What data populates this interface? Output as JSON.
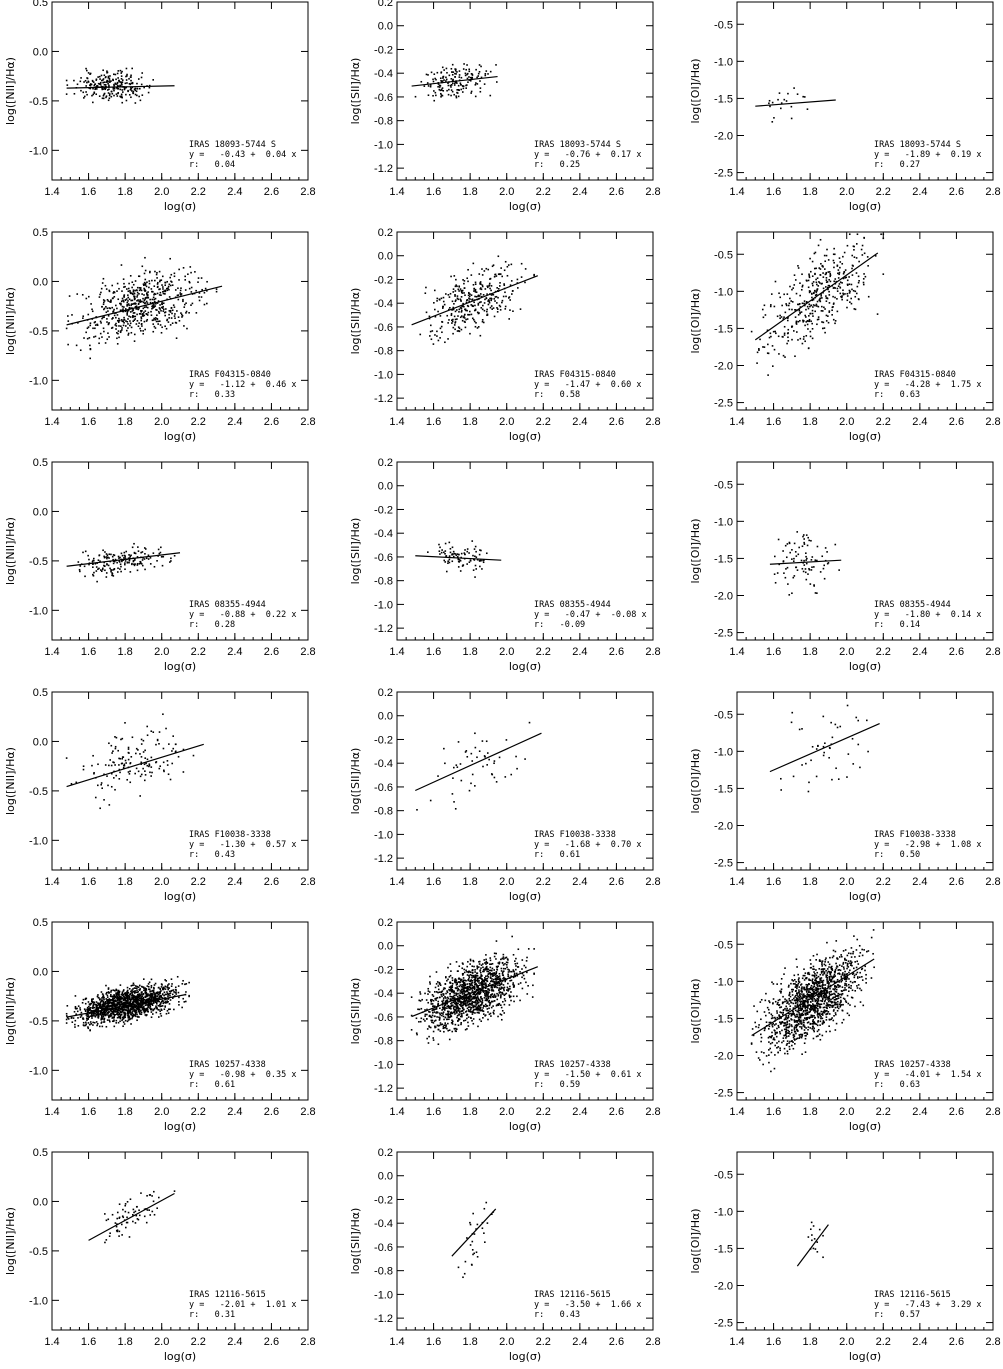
{
  "chart_data": [
    {
      "type": "scatter",
      "object": "IRAS 18093-5744 S",
      "xlabel": "log(σ)",
      "ylabel": "log([NII]/Hα)",
      "xlim": [
        1.4,
        2.8
      ],
      "ylim": [
        -1.3,
        0.5
      ],
      "xticks": [
        "1.4",
        "1.6",
        "1.8",
        "2.0",
        "2.2",
        "2.4",
        "2.6",
        "2.8"
      ],
      "yticks": [
        "0.5",
        "0.0",
        "-0.5",
        "-1.0"
      ],
      "fit_label": "y =   -0.43 +  0.04 x",
      "r_label": "r:   0.04",
      "intercept": -0.43,
      "slope": 0.04,
      "r": 0.04,
      "fit_x": [
        1.48,
        2.07
      ],
      "cloud": {
        "x": [
          1.48,
          1.98
        ],
        "center_x": 1.7,
        "y_center": -0.35,
        "y_spread": 0.07,
        "n": 250
      }
    },
    {
      "type": "scatter",
      "object": "IRAS 18093-5744 S",
      "xlabel": "log(σ)",
      "ylabel": "log([SII]/Hα)",
      "xlim": [
        1.4,
        2.8
      ],
      "ylim": [
        -1.3,
        0.2
      ],
      "xticks": [
        "1.4",
        "1.6",
        "1.8",
        "2.0",
        "2.2",
        "2.4",
        "2.6",
        "2.8"
      ],
      "yticks": [
        "0.2",
        "0.0",
        "-0.2",
        "-0.4",
        "-0.6",
        "-0.8",
        "-1.0",
        "-1.2"
      ],
      "fit_label": "y =   -0.76 +  0.17 x",
      "r_label": "r:   0.25",
      "intercept": -0.76,
      "slope": 0.17,
      "r": 0.25,
      "fit_x": [
        1.48,
        1.95
      ],
      "cloud": {
        "x": [
          1.48,
          1.95
        ],
        "center_x": 1.65,
        "y_center": -0.49,
        "y_spread": 0.07,
        "n": 170
      }
    },
    {
      "type": "scatter",
      "object": "IRAS 18093-5744 S",
      "xlabel": "log(σ)",
      "ylabel": "log([OI]/Hα)",
      "xlim": [
        1.4,
        2.8
      ],
      "ylim": [
        -2.6,
        -0.2
      ],
      "xticks": [
        "1.4",
        "1.6",
        "1.8",
        "2.0",
        "2.2",
        "2.4",
        "2.6",
        "2.8"
      ],
      "yticks": [
        "-0.5",
        "-1.0",
        "-1.5",
        "-2.0",
        "-2.5"
      ],
      "fit_label": "y =   -1.89 +  0.19 x",
      "r_label": "r:   0.27",
      "intercept": -1.89,
      "slope": 0.19,
      "r": 0.27,
      "fit_x": [
        1.5,
        1.94
      ],
      "cloud": {
        "x": [
          1.5,
          1.8
        ],
        "center_x": 1.65,
        "y_center": -1.57,
        "y_spread": 0.1,
        "n": 20
      }
    },
    {
      "type": "scatter",
      "object": "IRAS F04315-0840",
      "xlabel": "log(σ)",
      "ylabel": "log([NII]/Hα)",
      "xlim": [
        1.4,
        2.8
      ],
      "ylim": [
        -1.3,
        0.5
      ],
      "xticks": [
        "1.4",
        "1.6",
        "1.8",
        "2.0",
        "2.2",
        "2.4",
        "2.6",
        "2.8"
      ],
      "yticks": [
        "0.5",
        "0.0",
        "-0.5",
        "-1.0"
      ],
      "fit_label": "y =   -1.12 +  0.46 x",
      "r_label": "r:   0.33",
      "intercept": -1.12,
      "slope": 0.46,
      "r": 0.33,
      "fit_x": [
        1.48,
        2.33
      ],
      "cloud": {
        "x": [
          1.48,
          2.3
        ],
        "center_x": 1.8,
        "y_center": -0.28,
        "y_spread": 0.16,
        "n": 600
      }
    },
    {
      "type": "scatter",
      "object": "IRAS F04315-0840",
      "xlabel": "log(σ)",
      "ylabel": "log([SII]/Hα)",
      "xlim": [
        1.4,
        2.8
      ],
      "ylim": [
        -1.3,
        0.2
      ],
      "xticks": [
        "1.4",
        "1.6",
        "1.8",
        "2.0",
        "2.2",
        "2.4",
        "2.6",
        "2.8"
      ],
      "yticks": [
        "0.2",
        "0.0",
        "-0.2",
        "-0.4",
        "-0.6",
        "-0.8",
        "-1.0",
        "-1.2"
      ],
      "fit_label": "y =   -1.47 +  0.60 x",
      "r_label": "r:   0.58",
      "intercept": -1.47,
      "slope": 0.6,
      "r": 0.58,
      "fit_x": [
        1.48,
        2.17
      ],
      "cloud": {
        "x": [
          1.48,
          2.15
        ],
        "center_x": 1.8,
        "y_center": -0.38,
        "y_spread": 0.13,
        "n": 350
      }
    },
    {
      "type": "scatter",
      "object": "IRAS F04315-0840",
      "xlabel": "log(σ)",
      "ylabel": "log([OI]/Hα)",
      "xlim": [
        1.4,
        2.8
      ],
      "ylim": [
        -2.6,
        -0.2
      ],
      "xticks": [
        "1.4",
        "1.6",
        "1.8",
        "2.0",
        "2.2",
        "2.4",
        "2.6",
        "2.8"
      ],
      "yticks": [
        "-0.5",
        "-1.0",
        "-1.5",
        "-2.0",
        "-2.5"
      ],
      "fit_label": "y =   -4.28 +  1.75 x",
      "r_label": "r:   0.63",
      "intercept": -4.28,
      "slope": 1.75,
      "r": 0.63,
      "fit_x": [
        1.5,
        2.17
      ],
      "cloud": {
        "x": [
          1.48,
          2.2
        ],
        "center_x": 1.82,
        "y_center": -1.1,
        "y_spread": 0.27,
        "n": 420
      }
    },
    {
      "type": "scatter",
      "object": "IRAS 08355-4944",
      "xlabel": "log(σ)",
      "ylabel": "log([NII]/Hα)",
      "xlim": [
        1.4,
        2.8
      ],
      "ylim": [
        -1.3,
        0.5
      ],
      "xticks": [
        "1.4",
        "1.6",
        "1.8",
        "2.0",
        "2.2",
        "2.4",
        "2.6",
        "2.8"
      ],
      "yticks": [
        "0.5",
        "0.0",
        "-0.5",
        "-1.0"
      ],
      "fit_label": "y =   -0.88 +  0.22 x",
      "r_label": "r:   0.28",
      "intercept": -0.88,
      "slope": 0.22,
      "r": 0.28,
      "fit_x": [
        1.48,
        2.1
      ],
      "cloud": {
        "x": [
          1.48,
          2.08
        ],
        "center_x": 1.78,
        "y_center": -0.5,
        "y_spread": 0.07,
        "n": 180
      }
    },
    {
      "type": "scatter",
      "object": "IRAS 08355-4944",
      "xlabel": "log(σ)",
      "ylabel": "log([SII]/Hα)",
      "xlim": [
        1.4,
        2.8
      ],
      "ylim": [
        -1.3,
        0.2
      ],
      "xticks": [
        "1.4",
        "1.6",
        "1.8",
        "2.0",
        "2.2",
        "2.4",
        "2.6",
        "2.8"
      ],
      "yticks": [
        "0.2",
        "0.0",
        "-0.2",
        "-0.4",
        "-0.6",
        "-0.8",
        "-1.0",
        "-1.2"
      ],
      "fit_label": "y =   -0.47 +  -0.08 x",
      "r_label": "r:   -0.09",
      "intercept": -0.47,
      "slope": -0.08,
      "r": -0.09,
      "fit_x": [
        1.5,
        1.97
      ],
      "cloud": {
        "x": [
          1.55,
          1.97
        ],
        "center_x": 1.78,
        "y_center": -0.6,
        "y_spread": 0.06,
        "n": 90
      }
    },
    {
      "type": "scatter",
      "object": "IRAS 08355-4944",
      "xlabel": "log(σ)",
      "ylabel": "log([OI]/Hα)",
      "xlim": [
        1.4,
        2.8
      ],
      "ylim": [
        -2.6,
        -0.2
      ],
      "xticks": [
        "1.4",
        "1.6",
        "1.8",
        "2.0",
        "2.2",
        "2.4",
        "2.6",
        "2.8"
      ],
      "yticks": [
        "-0.5",
        "-1.0",
        "-1.5",
        "-2.0",
        "-2.5"
      ],
      "fit_label": "y =   -1.80 +  0.14 x",
      "r_label": "r:   0.14",
      "intercept": -1.8,
      "slope": 0.14,
      "r": 0.14,
      "fit_x": [
        1.58,
        1.97
      ],
      "cloud": {
        "x": [
          1.58,
          1.97
        ],
        "center_x": 1.8,
        "y_center": -1.5,
        "y_spread": 0.2,
        "n": 90
      }
    },
    {
      "type": "scatter",
      "object": "IRAS F10038-3338",
      "xlabel": "log(σ)",
      "ylabel": "log([NII]/Hα)",
      "xlim": [
        1.4,
        2.8
      ],
      "ylim": [
        -1.3,
        0.5
      ],
      "xticks": [
        "1.4",
        "1.6",
        "1.8",
        "2.0",
        "2.2",
        "2.4",
        "2.6",
        "2.8"
      ],
      "yticks": [
        "0.5",
        "0.0",
        "-0.5",
        "-1.0"
      ],
      "fit_label": "y =   -1.30 +  0.57 x",
      "r_label": "r:   0.43",
      "intercept": -1.3,
      "slope": 0.57,
      "r": 0.43,
      "fit_x": [
        1.48,
        2.23
      ],
      "cloud": {
        "x": [
          1.48,
          2.2
        ],
        "center_x": 1.85,
        "y_center": -0.22,
        "y_spread": 0.16,
        "n": 150
      }
    },
    {
      "type": "scatter",
      "object": "IRAS F10038-3338",
      "xlabel": "log(σ)",
      "ylabel": "log([SII]/Hα)",
      "xlim": [
        1.4,
        2.8
      ],
      "ylim": [
        -1.3,
        0.2
      ],
      "xticks": [
        "1.4",
        "1.6",
        "1.8",
        "2.0",
        "2.2",
        "2.4",
        "2.6",
        "2.8"
      ],
      "yticks": [
        "0.2",
        "0.0",
        "-0.2",
        "-0.4",
        "-0.6",
        "-0.8",
        "-1.0",
        "-1.2"
      ],
      "fit_label": "y =   -1.68 +  0.70 x",
      "r_label": "r:   0.61",
      "intercept": -1.68,
      "slope": 0.7,
      "r": 0.61,
      "fit_x": [
        1.5,
        2.19
      ],
      "cloud": {
        "x": [
          1.5,
          2.15
        ],
        "center_x": 1.85,
        "y_center": -0.38,
        "y_spread": 0.14,
        "n": 50
      }
    },
    {
      "type": "scatter",
      "object": "IRAS F10038-3338",
      "xlabel": "log(σ)",
      "ylabel": "log([OI]/Hα)",
      "xlim": [
        1.4,
        2.8
      ],
      "ylim": [
        -2.6,
        -0.2
      ],
      "xticks": [
        "1.4",
        "1.6",
        "1.8",
        "2.0",
        "2.2",
        "2.4",
        "2.6",
        "2.8"
      ],
      "yticks": [
        "-0.5",
        "-1.0",
        "-1.5",
        "-2.0",
        "-2.5"
      ],
      "fit_label": "y =   -2.98 +  1.08 x",
      "r_label": "r:   0.50",
      "intercept": -2.98,
      "slope": 1.08,
      "r": 0.5,
      "fit_x": [
        1.58,
        2.18
      ],
      "cloud": {
        "x": [
          1.58,
          2.18
        ],
        "center_x": 1.92,
        "y_center": -0.9,
        "y_spread": 0.28,
        "n": 45
      }
    },
    {
      "type": "scatter",
      "object": "IRAS 10257-4338",
      "xlabel": "log(σ)",
      "ylabel": "log([NII]/Hα)",
      "xlim": [
        1.4,
        2.8
      ],
      "ylim": [
        -1.3,
        0.5
      ],
      "xticks": [
        "1.4",
        "1.6",
        "1.8",
        "2.0",
        "2.2",
        "2.4",
        "2.6",
        "2.8"
      ],
      "yticks": [
        "0.5",
        "0.0",
        "-0.5",
        "-1.0"
      ],
      "fit_label": "y =   -0.98 +  0.35 x",
      "r_label": "r:   0.61",
      "intercept": -0.98,
      "slope": 0.35,
      "r": 0.61,
      "fit_x": [
        1.48,
        2.13
      ],
      "cloud": {
        "x": [
          1.48,
          2.15
        ],
        "center_x": 1.75,
        "y_center": -0.35,
        "y_spread": 0.08,
        "n": 1400
      }
    },
    {
      "type": "scatter",
      "object": "IRAS 10257-4338",
      "xlabel": "log(σ)",
      "ylabel": "log([SII]/Hα)",
      "xlim": [
        1.4,
        2.8
      ],
      "ylim": [
        -1.3,
        0.2
      ],
      "xticks": [
        "1.4",
        "1.6",
        "1.8",
        "2.0",
        "2.2",
        "2.4",
        "2.6",
        "2.8"
      ],
      "yticks": [
        "0.2",
        "0.0",
        "-0.2",
        "-0.4",
        "-0.6",
        "-0.8",
        "-1.0",
        "-1.2"
      ],
      "fit_label": "y =   -1.50 +  0.61 x",
      "r_label": "r:   0.59",
      "intercept": -1.5,
      "slope": 0.61,
      "r": 0.59,
      "fit_x": [
        1.48,
        2.17
      ],
      "cloud": {
        "x": [
          1.48,
          2.15
        ],
        "center_x": 1.78,
        "y_center": -0.42,
        "y_spread": 0.12,
        "n": 1300
      }
    },
    {
      "type": "scatter",
      "object": "IRAS 10257-4338",
      "xlabel": "log(σ)",
      "ylabel": "log([OI]/Hα)",
      "xlim": [
        1.4,
        2.8
      ],
      "ylim": [
        -2.6,
        -0.2
      ],
      "xticks": [
        "1.4",
        "1.6",
        "1.8",
        "2.0",
        "2.2",
        "2.4",
        "2.6",
        "2.8"
      ],
      "yticks": [
        "-0.5",
        "-1.0",
        "-1.5",
        "-2.0",
        "-2.5"
      ],
      "fit_label": "y =   -4.01 +  1.54 x",
      "r_label": "r:   0.63",
      "intercept": -4.01,
      "slope": 1.54,
      "r": 0.63,
      "fit_x": [
        1.48,
        2.15
      ],
      "cloud": {
        "x": [
          1.48,
          2.15
        ],
        "center_x": 1.78,
        "y_center": -1.3,
        "y_spread": 0.24,
        "n": 1300
      }
    },
    {
      "type": "scatter",
      "object": "IRAS 12116-5615",
      "xlabel": "log(σ)",
      "ylabel": "log([NII]/Hα)",
      "xlim": [
        1.4,
        2.8
      ],
      "ylim": [
        -1.3,
        0.5
      ],
      "xticks": [
        "1.4",
        "1.6",
        "1.8",
        "2.0",
        "2.2",
        "2.4",
        "2.6",
        "2.8"
      ],
      "yticks": [
        "0.5",
        "0.0",
        "-0.5",
        "-1.0"
      ],
      "fit_label": "y =   -2.01 +  1.01 x",
      "r_label": "r:   0.31",
      "intercept": -2.01,
      "slope": 1.01,
      "r": 0.31,
      "fit_x": [
        1.6,
        2.07
      ],
      "cloud": {
        "x": [
          1.6,
          2.07
        ],
        "center_x": 1.87,
        "y_center": -0.1,
        "y_spread": 0.1,
        "n": 70
      }
    },
    {
      "type": "scatter",
      "object": "IRAS 12116-5615",
      "xlabel": "log(σ)",
      "ylabel": "log([SII]/Hα)",
      "xlim": [
        1.4,
        2.8
      ],
      "ylim": [
        -1.3,
        0.2
      ],
      "xticks": [
        "1.4",
        "1.6",
        "1.8",
        "2.0",
        "2.2",
        "2.4",
        "2.6",
        "2.8"
      ],
      "yticks": [
        "0.2",
        "0.0",
        "-0.2",
        "-0.4",
        "-0.6",
        "-0.8",
        "-1.0",
        "-1.2"
      ],
      "fit_label": "y =   -3.50 +  1.66 x",
      "r_label": "r:   0.43",
      "intercept": -3.5,
      "slope": 1.66,
      "r": 0.43,
      "fit_x": [
        1.7,
        1.94
      ],
      "cloud": {
        "x": [
          1.72,
          1.95
        ],
        "center_x": 1.84,
        "y_center": -0.48,
        "y_spread": 0.13,
        "n": 30
      }
    },
    {
      "type": "scatter",
      "object": "IRAS 12116-5615",
      "xlabel": "log(σ)",
      "ylabel": "log([OI]/Hα)",
      "xlim": [
        1.4,
        2.8
      ],
      "ylim": [
        -2.6,
        -0.2
      ],
      "xticks": [
        "1.4",
        "1.6",
        "1.8",
        "2.0",
        "2.2",
        "2.4",
        "2.6",
        "2.8"
      ],
      "yticks": [
        "-0.5",
        "-1.0",
        "-1.5",
        "-2.0",
        "-2.5"
      ],
      "fit_label": "y =   -7.43 +  3.29 x",
      "r_label": "r:   0.57",
      "intercept": -7.43,
      "slope": 3.29,
      "r": 0.57,
      "fit_x": [
        1.73,
        1.9
      ],
      "cloud": {
        "x": [
          1.73,
          1.9
        ],
        "center_x": 1.82,
        "y_center": -1.4,
        "y_spread": 0.22,
        "n": 15
      }
    }
  ]
}
